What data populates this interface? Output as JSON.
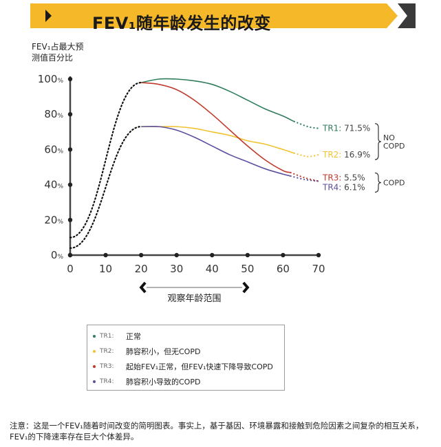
{
  "banner": {
    "title": "FEV₁随年龄发生的改变",
    "color": "#F5B829",
    "arrow_color": "#3a3a3a"
  },
  "chart_data": {
    "type": "line",
    "ylabel_lines": [
      "FEV₁占最大预",
      "测值百分比"
    ],
    "xlabel": "观察年龄范围",
    "xlim": [
      0,
      70
    ],
    "ylim": [
      0,
      100
    ],
    "xticks": [
      0,
      10,
      20,
      30,
      40,
      50,
      60,
      70
    ],
    "yticks": [
      {
        "value": 0,
        "label": "0%"
      },
      {
        "value": 20,
        "label": "20%"
      },
      {
        "value": 40,
        "label": "40%"
      },
      {
        "value": 60,
        "label": "60%"
      },
      {
        "value": 80,
        "label": "80%"
      },
      {
        "value": 100,
        "label": "100%"
      }
    ],
    "x_range_arrow": [
      20,
      50
    ],
    "growth_curves": [
      {
        "from": [
          0,
          10
        ],
        "to": [
          20,
          98
        ]
      },
      {
        "from": [
          0,
          4
        ],
        "to": [
          20,
          73
        ]
      }
    ],
    "series": [
      {
        "name": "TR1",
        "color": "#2E7D5B",
        "start_value": 98,
        "end_label": "71.5%",
        "x": [
          20,
          25,
          30,
          35,
          40,
          45,
          50,
          55,
          60,
          63
        ],
        "y": [
          98,
          100,
          100,
          99,
          97,
          93,
          88,
          83,
          79,
          76
        ],
        "dotted_x": [
          63,
          67,
          70
        ],
        "dotted_y": [
          76,
          73,
          72
        ]
      },
      {
        "name": "TR2",
        "color": "#F2C230",
        "start_value": 73,
        "end_label": "16.9%",
        "x": [
          20,
          25,
          30,
          35,
          40,
          45,
          50,
          55,
          60,
          63
        ],
        "y": [
          73,
          73,
          73,
          72,
          70,
          68,
          65,
          63,
          60,
          58
        ],
        "dotted_x": [
          63,
          67,
          70
        ],
        "dotted_y": [
          58,
          56,
          57
        ]
      },
      {
        "name": "TR3",
        "color": "#C0392B",
        "start_value": 98,
        "end_label": "5.5%",
        "x": [
          20,
          25,
          30,
          35,
          40,
          45,
          50,
          55,
          60,
          62
        ],
        "y": [
          98,
          97,
          94,
          88,
          80,
          71,
          62,
          54,
          48,
          47
        ],
        "dotted_x": [
          62,
          66,
          70
        ],
        "dotted_y": [
          47,
          44,
          42
        ]
      },
      {
        "name": "TR4",
        "color": "#5B4E9E",
        "start_value": 73,
        "end_label": "6.1%",
        "x": [
          20,
          25,
          30,
          35,
          40,
          45,
          50,
          55,
          60,
          62
        ],
        "y": [
          73,
          73,
          71,
          67,
          62,
          57,
          53,
          49,
          46,
          45
        ],
        "dotted_x": [
          62,
          66,
          70
        ],
        "dotted_y": [
          45,
          43,
          42
        ]
      }
    ],
    "groups": [
      {
        "label_lines": [
          "NO",
          "COPD"
        ],
        "series": [
          "TR1",
          "TR2"
        ]
      },
      {
        "label_lines": [
          "COPD"
        ],
        "series": [
          "TR3",
          "TR4"
        ]
      }
    ]
  },
  "legend": {
    "items": [
      {
        "code": "TR1:",
        "desc": "正常",
        "color": "#2E7D5B"
      },
      {
        "code": "TR2:",
        "desc": "肺容积小，但无COPD",
        "color": "#F2C230"
      },
      {
        "code": "TR3:",
        "desc": "起始FEV₁正常，但FEV₁快速下降导致COPD",
        "color": "#C0392B"
      },
      {
        "code": "TR4:",
        "desc": "肺容积小导致的COPD",
        "color": "#5B4E9E"
      }
    ]
  },
  "footnote": "注意：这是一个FEV₁随着时间改变的简明图表。事实上，基于基因、环境暴露和接触到危险因素之间复杂的相互关系，FEV₁的下降速率存在巨大个体差异。"
}
